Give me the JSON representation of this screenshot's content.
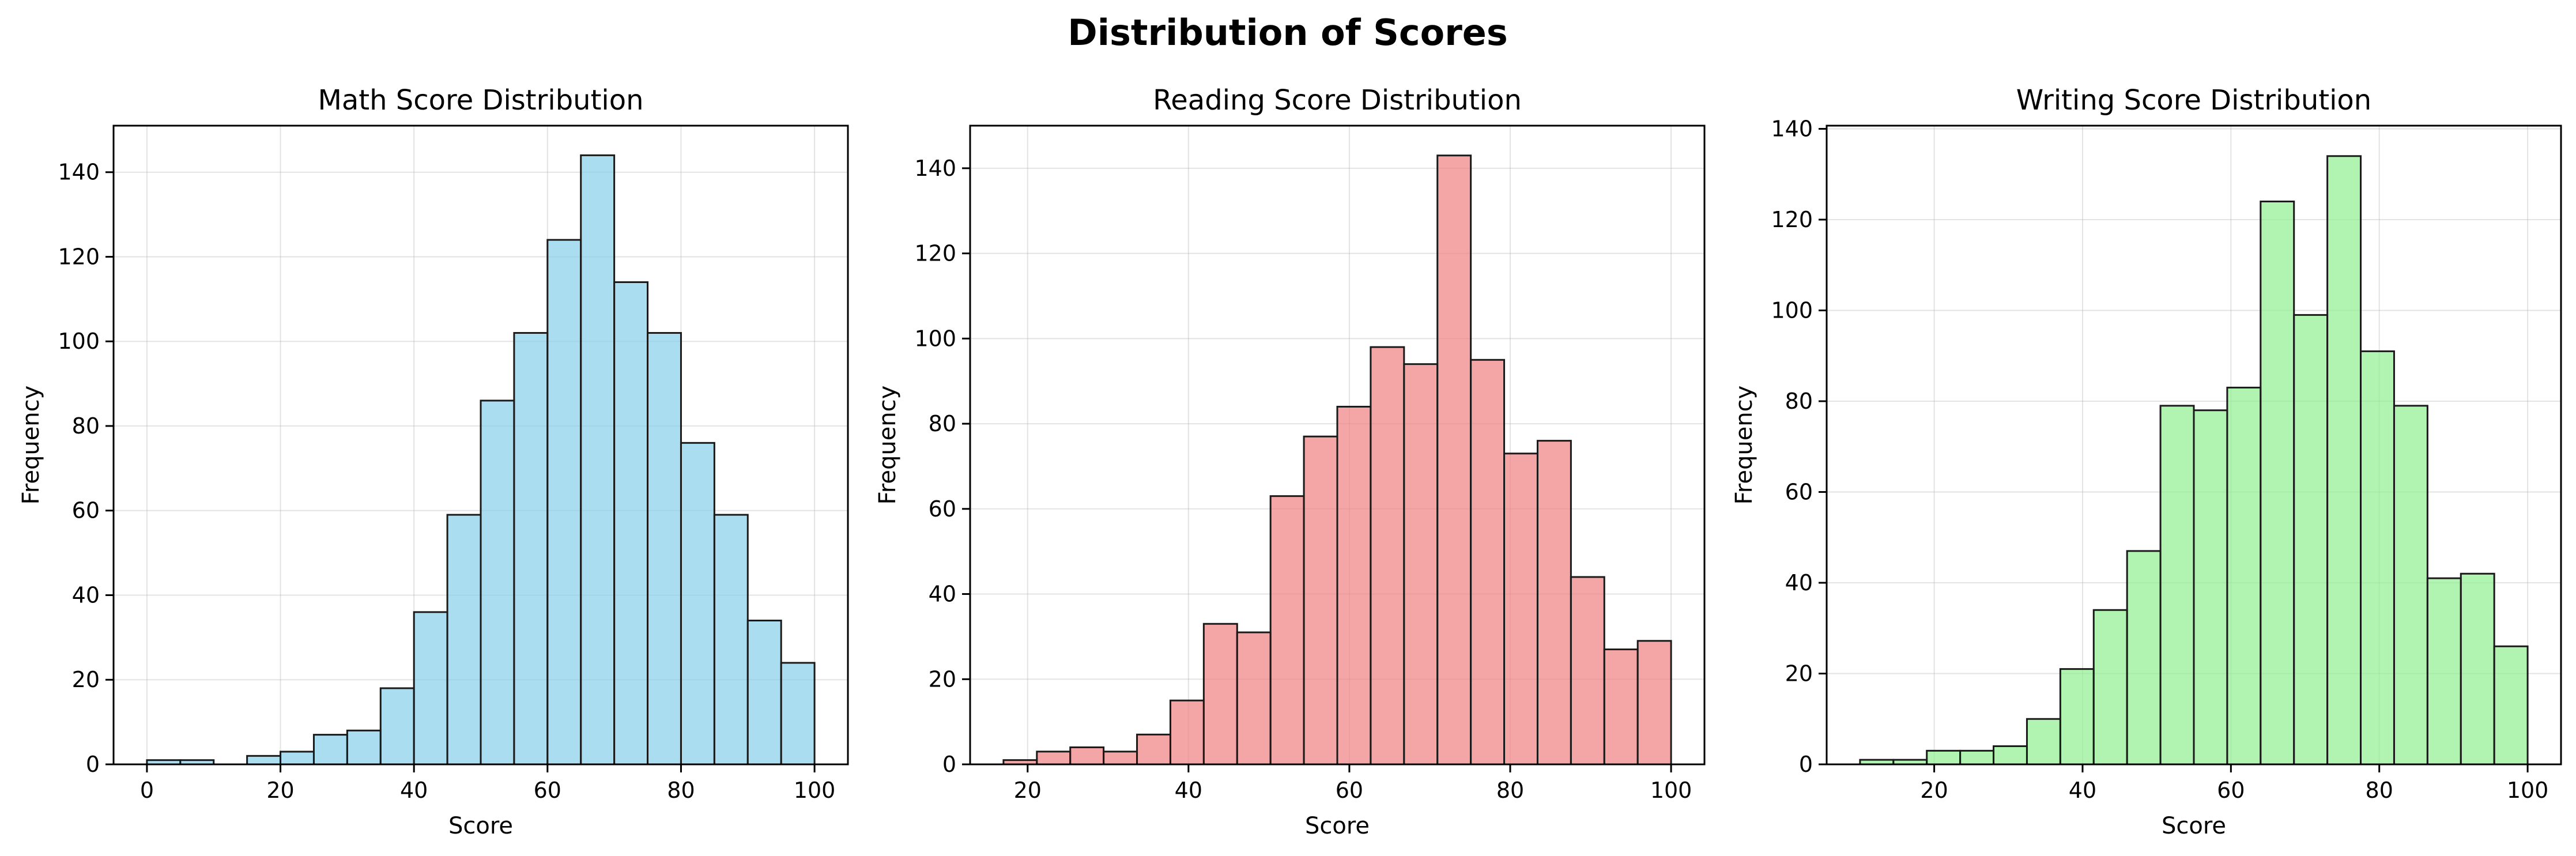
{
  "figure": {
    "title": "Distribution of Scores"
  },
  "chart_data": [
    {
      "type": "bar",
      "title": "Math Score Distribution",
      "xlabel": "Score",
      "ylabel": "Frequency",
      "xlim": [
        -5,
        105
      ],
      "ylim": [
        0,
        151
      ],
      "xticks": [
        0,
        20,
        40,
        60,
        80,
        100
      ],
      "yticks": [
        0,
        20,
        40,
        60,
        80,
        100,
        120,
        140
      ],
      "grid": true,
      "color": "#87CEEB",
      "edgecolor": "#1a1a1a",
      "bin_edges": [
        0,
        5,
        10,
        15,
        20,
        25,
        30,
        35,
        40,
        45,
        50,
        55,
        60,
        65,
        70,
        75,
        80,
        85,
        90,
        95,
        100
      ],
      "values": [
        1,
        1,
        0,
        2,
        3,
        7,
        8,
        18,
        36,
        59,
        86,
        102,
        124,
        144,
        114,
        102,
        76,
        59,
        34,
        24
      ]
    },
    {
      "type": "bar",
      "title": "Reading Score Distribution",
      "xlabel": "Score",
      "ylabel": "Frequency",
      "xlim": [
        12.85,
        104.15
      ],
      "ylim": [
        0,
        150
      ],
      "xticks": [
        20,
        40,
        60,
        80,
        100
      ],
      "yticks": [
        0,
        20,
        40,
        60,
        80,
        100,
        120,
        140
      ],
      "grid": true,
      "color": "#F08080",
      "edgecolor": "#1a1a1a",
      "bin_edges": [
        17,
        21.15,
        25.3,
        29.45,
        33.6,
        37.75,
        41.9,
        46.05,
        50.2,
        54.35,
        58.5,
        62.65,
        66.8,
        70.95,
        75.1,
        79.25,
        83.4,
        87.55,
        91.7,
        95.85,
        100
      ],
      "values": [
        1,
        3,
        4,
        3,
        7,
        15,
        33,
        31,
        63,
        77,
        84,
        98,
        94,
        143,
        95,
        73,
        76,
        44,
        27,
        29
      ]
    },
    {
      "type": "bar",
      "title": "Writing Score Distribution",
      "xlabel": "Score",
      "ylabel": "Frequency",
      "xlim": [
        5.5,
        104.5
      ],
      "ylim": [
        0,
        140.7
      ],
      "xticks": [
        20,
        40,
        60,
        80,
        100
      ],
      "yticks": [
        0,
        20,
        40,
        60,
        80,
        100,
        120,
        140
      ],
      "grid": true,
      "color": "#90EE90",
      "edgecolor": "#1a1a1a",
      "bin_edges": [
        10,
        14.5,
        19,
        23.5,
        28,
        32.5,
        37,
        41.5,
        46,
        50.5,
        55,
        59.5,
        64,
        68.5,
        73,
        77.5,
        82,
        86.5,
        91,
        95.5,
        100
      ],
      "values": [
        1,
        1,
        3,
        3,
        4,
        10,
        21,
        34,
        47,
        79,
        78,
        83,
        124,
        99,
        134,
        91,
        79,
        41,
        42,
        26
      ]
    }
  ]
}
